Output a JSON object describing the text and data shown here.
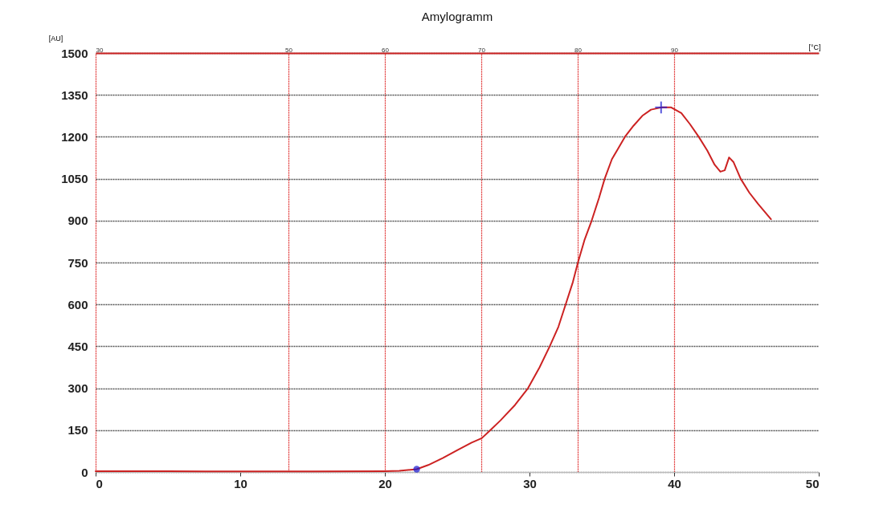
{
  "chart_data": {
    "type": "line",
    "title": "Amylogramm",
    "ylabel": "[AU]",
    "x2label": "[°C]",
    "xlim": [
      0,
      50
    ],
    "xticks": [
      0,
      10,
      20,
      30,
      40,
      50
    ],
    "ylim": [
      0,
      1500
    ],
    "yticks": [
      0,
      150,
      300,
      450,
      600,
      750,
      900,
      1050,
      1200,
      1350,
      1500
    ],
    "x2lim": [
      30,
      105
    ],
    "x2ticks": [
      30,
      50,
      60,
      70,
      80,
      90
    ],
    "grid": true,
    "series": [
      {
        "color": "#cc2222",
        "marker": "none",
        "x": [
          0,
          5,
          10,
          15,
          20,
          21,
          22.2,
          23,
          24,
          25,
          26,
          26.7,
          27.3,
          28,
          29,
          29.9,
          30.7,
          31.4,
          32,
          32.5,
          33,
          33.35,
          33.8,
          34.3,
          34.8,
          35.2,
          35.7,
          36.1,
          36.6,
          37.2,
          37.8,
          38.4,
          39.1,
          39.8,
          40.5,
          41.1,
          41.7,
          42.3,
          42.8,
          43.2,
          43.5,
          43.8,
          44.1,
          44.6,
          45.2,
          45.8,
          46.7
        ],
        "values": [
          3,
          3,
          2,
          2,
          3,
          4,
          10,
          25,
          50,
          78,
          105,
          121,
          150,
          185,
          240,
          300,
          375,
          450,
          520,
          600,
          680,
          750,
          830,
          900,
          980,
          1050,
          1120,
          1155,
          1200,
          1240,
          1275,
          1297,
          1305,
          1305,
          1285,
          1245,
          1200,
          1150,
          1100,
          1075,
          1080,
          1126,
          1110,
          1050,
          1000,
          960,
          905
        ]
      },
      {
        "type": "scatter",
        "color": "#1515d0",
        "marker": "circle",
        "x": [
          22.2
        ],
        "values": [
          10
        ]
      },
      {
        "type": "scatter",
        "color": "#1515d0",
        "marker": "cross",
        "x": [
          39.1
        ],
        "values": [
          1305
        ]
      }
    ]
  }
}
